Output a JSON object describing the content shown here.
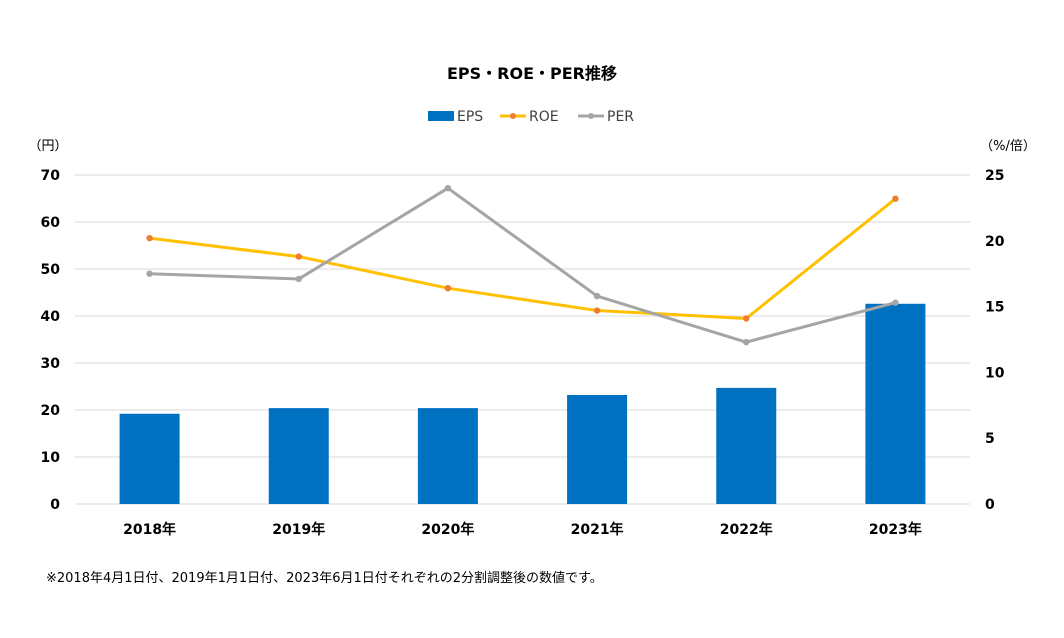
{
  "chart_data": {
    "type": "bar+line",
    "title": "EPS・ROE・PER推移",
    "categories": [
      "2018年",
      "2019年",
      "2020年",
      "2021年",
      "2022年",
      "2023年"
    ],
    "series": [
      {
        "name": "EPS",
        "type": "bar",
        "axis": "left",
        "color": "#0070C0",
        "values": [
          19.2,
          20.4,
          20.4,
          23.2,
          24.7,
          42.6
        ]
      },
      {
        "name": "ROE",
        "type": "line",
        "axis": "right",
        "color": "#FFC000",
        "marker_color": "#ED7D31",
        "values": [
          20.2,
          18.8,
          16.4,
          14.7,
          14.1,
          23.2
        ]
      },
      {
        "name": "PER",
        "type": "line",
        "axis": "right",
        "color": "#A5A5A5",
        "marker_color": "#A5A5A5",
        "values": [
          17.5,
          17.1,
          24.0,
          15.8,
          12.3,
          15.3
        ]
      }
    ],
    "left_axis": {
      "unit": "（円）",
      "min": 0,
      "max": 70,
      "ticks": [
        0,
        10,
        20,
        30,
        40,
        50,
        60,
        70
      ]
    },
    "right_axis": {
      "unit": "（%/倍）",
      "min": 0,
      "max": 25,
      "ticks": [
        0,
        5,
        10,
        15,
        20,
        25
      ]
    },
    "grid": true,
    "legend": "top-center",
    "note": "※2018年4月1日付、2019年1月1日付、2023年6月1日付それぞれの2分割調整後の数値です。"
  }
}
